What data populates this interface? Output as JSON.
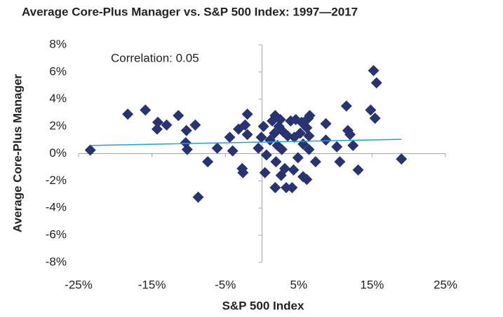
{
  "chart_data": {
    "type": "scatter",
    "title": "Average Core-Plus Manager vs. S&P 500 Index: 1997—2017",
    "x_label": "S&P 500 Index",
    "y_label": "Average Core-Plus Manager",
    "annotation": "Correlation: 0.05",
    "color": "#283371",
    "xlim": [
      -25,
      25
    ],
    "ylim": [
      -8,
      8
    ],
    "xticks": [
      {
        "value": -25,
        "label": "-25%"
      },
      {
        "value": -15,
        "label": "-15%"
      },
      {
        "value": -5,
        "label": "-5%"
      },
      {
        "value": 5,
        "label": "5%"
      },
      {
        "value": 15,
        "label": "15%"
      },
      {
        "value": 25,
        "label": "25%"
      }
    ],
    "yticks": [
      {
        "value": -8,
        "label": "-8%"
      },
      {
        "value": -6,
        "label": "-6%"
      },
      {
        "value": -4,
        "label": "-4%"
      },
      {
        "value": -2,
        "label": "-2%"
      },
      {
        "value": 0,
        "label": "0%"
      },
      {
        "value": 2,
        "label": "2%"
      },
      {
        "value": 4,
        "label": "4%"
      },
      {
        "value": 6,
        "label": "6%"
      },
      {
        "value": 8,
        "label": "8%"
      }
    ],
    "x": [
      -23.4,
      -18.3,
      -15.9,
      -14.2,
      -14.3,
      -13.0,
      -11.4,
      -10.3,
      -10.4,
      -10.2,
      -9.1,
      -8.7,
      -7.4,
      -6.1,
      -4.4,
      -4.0,
      -3.2,
      -2.7,
      -2.6,
      -2.3,
      -2.0,
      -2.0,
      -0.5,
      -0.1,
      0.2,
      0.4,
      0.6,
      1.1,
      1.4,
      1.7,
      1.8,
      1.8,
      1.9,
      2.1,
      2.3,
      2.5,
      2.6,
      2.7,
      2.9,
      3.1,
      3.3,
      3.5,
      3.9,
      4.1,
      4.3,
      4.4,
      4.6,
      4.9,
      5.2,
      5.4,
      5.6,
      5.6,
      6.1,
      6.1,
      6.3,
      6.4,
      6.4,
      6.5,
      7.3,
      8.7,
      8.7,
      10.2,
      10.6,
      11.5,
      11.7,
      12.0,
      12.4,
      13.1,
      14.8,
      15.2,
      15.6,
      15.4,
      19.0
    ],
    "values": [
      0.26,
      2.9,
      3.2,
      2.3,
      1.8,
      2.1,
      2.8,
      1.7,
      0.8,
      0.3,
      2.1,
      -3.2,
      -0.6,
      0.4,
      1.2,
      0.2,
      1.8,
      -1.1,
      -1.4,
      2.1,
      2.9,
      1.4,
      0.4,
      1.2,
      2.0,
      -1.4,
      -0.1,
      1.0,
      2.4,
      1.5,
      2.8,
      -2.5,
      -0.6,
      0.6,
      2.0,
      2.5,
      -1.6,
      0.3,
      1.6,
      -1.1,
      -2.5,
      1.3,
      2.4,
      -2.5,
      -1.2,
      1.2,
      2.5,
      -0.3,
      1.5,
      2.3,
      0.7,
      -1.7,
      -1.9,
      1.9,
      2.6,
      1.3,
      0.3,
      2.8,
      -0.6,
      2.2,
      1.0,
      0.5,
      -0.6,
      3.5,
      1.7,
      1.4,
      0.6,
      -1.2,
      3.2,
      6.1,
      5.2,
      2.6,
      -0.4
    ],
    "trendline": {
      "x": [
        -23.4,
        19.0
      ],
      "values": [
        0.6,
        1.05
      ],
      "color": "#1ea0e0"
    }
  }
}
